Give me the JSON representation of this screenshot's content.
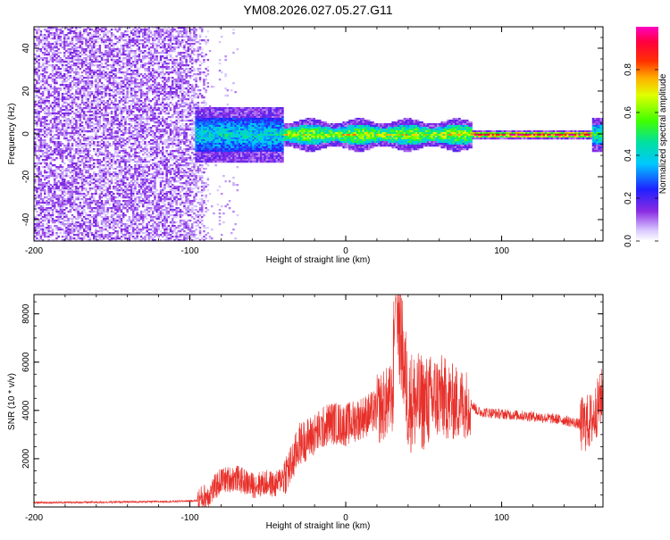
{
  "title": "YM08.2026.027.05.27.G11",
  "chart_data": [
    {
      "type": "heatmap",
      "xlabel": "Height of straight line (km)",
      "ylabel": "Frequency (Hz)",
      "xlim": [
        -200,
        165
      ],
      "ylim": [
        -50,
        50
      ],
      "xticks": [
        -200,
        -100,
        0,
        100
      ],
      "yticks": [
        -40,
        -20,
        0,
        20,
        40
      ],
      "colorbar": {
        "label": "Normalized spectral amplitude",
        "range": [
          0.0,
          1.0
        ],
        "ticks": [
          0.0,
          0.2,
          0.4,
          0.6,
          0.8
        ],
        "colormap": "rainbow (white-violet-blue-cyan-green-yellow-red-magenta)"
      },
      "features": [
        {
          "x_range": [
            -200,
            -87
          ],
          "f_range": [
            -50,
            50
          ],
          "amplitude": 0.1,
          "description": "broadband low-amplitude noise"
        },
        {
          "x_range": [
            -97,
            -40
          ],
          "f_range": [
            -8,
            8
          ],
          "amplitude": 0.4
        },
        {
          "x_range": [
            -40,
            80
          ],
          "f_range": [
            -4,
            4
          ],
          "amplitude": 0.7
        },
        {
          "x_range": [
            80,
            160
          ],
          "f_range": [
            -1,
            1
          ],
          "amplitude": 0.95
        }
      ]
    },
    {
      "type": "line",
      "xlabel": "Height of straight line (km)",
      "ylabel": "SNR (10 * v/v)",
      "xlim": [
        -200,
        165
      ],
      "ylim": [
        0,
        8800
      ],
      "xticks": [
        -200,
        -100,
        0,
        100
      ],
      "yticks": [
        2000,
        4000,
        6000,
        8000
      ],
      "series": [
        {
          "color": "#e8302a",
          "x": [
            -200,
            -150,
            -110,
            -95,
            -88,
            -80,
            -70,
            -60,
            -50,
            -45,
            -35,
            -30,
            -20,
            -10,
            0,
            10,
            20,
            30,
            32,
            40,
            50,
            60,
            70,
            80,
            85,
            100,
            120,
            140,
            152,
            158,
            165
          ],
          "y": [
            180,
            200,
            230,
            260,
            500,
            1100,
            1200,
            900,
            1000,
            900,
            1700,
            2600,
            3000,
            3500,
            3400,
            3700,
            4000,
            4500,
            8800,
            4400,
            4300,
            4600,
            4300,
            4300,
            3950,
            3850,
            3750,
            3600,
            3400,
            3600,
            4700
          ]
        }
      ]
    }
  ]
}
